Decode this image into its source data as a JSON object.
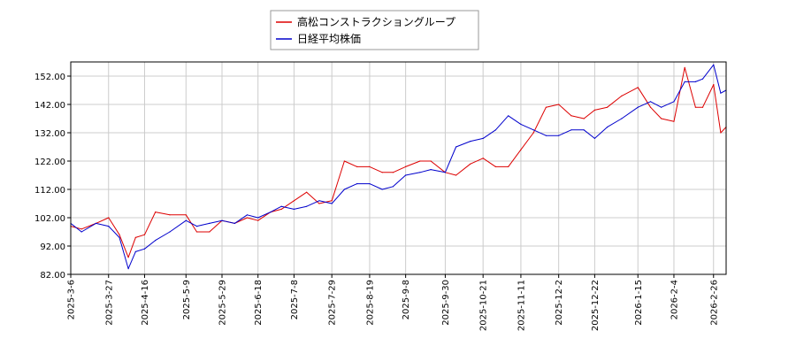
{
  "chart_data": {
    "type": "line",
    "title": "",
    "xlabel": "",
    "ylabel": "",
    "ylim": [
      82,
      157
    ],
    "yticks": [
      "82.00",
      "92.00",
      "102.00",
      "112.00",
      "122.00",
      "132.00",
      "142.00",
      "152.00"
    ],
    "xlim": [
      "2025-03-06",
      "2026-03-05"
    ],
    "xticks": [
      "2025-3-6",
      "2025-3-27",
      "2025-4-16",
      "2025-5-9",
      "2025-5-29",
      "2025-6-18",
      "2025-7-8",
      "2025-7-29",
      "2025-8-19",
      "2025-9-8",
      "2025-9-30",
      "2025-10-21",
      "2025-11-11",
      "2025-12-2",
      "2025-12-22",
      "2026-1-15",
      "2026-2-4",
      "2026-2-26"
    ],
    "grid": true,
    "legend_position": "top-center",
    "series": [
      {
        "name": "高松コンストラクショングループ",
        "color": "#dd0000",
        "x": [
          "2025-03-06",
          "2025-03-12",
          "2025-03-20",
          "2025-03-27",
          "2025-04-02",
          "2025-04-07",
          "2025-04-11",
          "2025-04-16",
          "2025-04-22",
          "2025-04-30",
          "2025-05-09",
          "2025-05-15",
          "2025-05-22",
          "2025-05-29",
          "2025-06-05",
          "2025-06-12",
          "2025-06-18",
          "2025-06-25",
          "2025-07-01",
          "2025-07-08",
          "2025-07-15",
          "2025-07-22",
          "2025-07-29",
          "2025-08-05",
          "2025-08-12",
          "2025-08-19",
          "2025-08-26",
          "2025-09-01",
          "2025-09-08",
          "2025-09-16",
          "2025-09-22",
          "2025-09-30",
          "2025-10-06",
          "2025-10-14",
          "2025-10-21",
          "2025-10-28",
          "2025-11-04",
          "2025-11-11",
          "2025-11-18",
          "2025-11-25",
          "2025-12-02",
          "2025-12-09",
          "2025-12-16",
          "2025-12-22",
          "2025-12-29",
          "2026-01-06",
          "2026-01-15",
          "2026-01-22",
          "2026-01-28",
          "2026-02-04",
          "2026-02-10",
          "2026-02-16",
          "2026-02-20",
          "2026-02-26",
          "2026-03-02",
          "2026-03-05"
        ],
        "values": [
          99,
          98,
          100,
          102,
          96,
          88,
          95,
          96,
          104,
          103,
          103,
          97,
          97,
          101,
          100,
          102,
          101,
          104,
          105,
          108,
          111,
          107,
          108,
          122,
          120,
          120,
          118,
          118,
          120,
          122,
          122,
          118,
          117,
          121,
          123,
          120,
          120,
          126,
          132,
          141,
          142,
          138,
          137,
          140,
          141,
          145,
          148,
          141,
          137,
          136,
          155,
          141,
          141,
          149,
          132,
          134
        ]
      },
      {
        "name": "日経平均株価",
        "color": "#0000cc",
        "x": [
          "2025-03-06",
          "2025-03-12",
          "2025-03-20",
          "2025-03-27",
          "2025-04-02",
          "2025-04-07",
          "2025-04-11",
          "2025-04-16",
          "2025-04-22",
          "2025-04-30",
          "2025-05-09",
          "2025-05-15",
          "2025-05-22",
          "2025-05-29",
          "2025-06-05",
          "2025-06-12",
          "2025-06-18",
          "2025-06-25",
          "2025-07-01",
          "2025-07-08",
          "2025-07-15",
          "2025-07-22",
          "2025-07-29",
          "2025-08-05",
          "2025-08-12",
          "2025-08-19",
          "2025-08-26",
          "2025-09-01",
          "2025-09-08",
          "2025-09-16",
          "2025-09-22",
          "2025-09-30",
          "2025-10-06",
          "2025-10-14",
          "2025-10-21",
          "2025-10-28",
          "2025-11-04",
          "2025-11-11",
          "2025-11-18",
          "2025-11-25",
          "2025-12-02",
          "2025-12-09",
          "2025-12-16",
          "2025-12-22",
          "2025-12-29",
          "2026-01-06",
          "2026-01-15",
          "2026-01-22",
          "2026-01-28",
          "2026-02-04",
          "2026-02-10",
          "2026-02-16",
          "2026-02-20",
          "2026-02-26",
          "2026-03-02",
          "2026-03-05"
        ],
        "values": [
          100,
          97,
          100,
          99,
          95,
          84,
          90,
          91,
          94,
          97,
          101,
          99,
          100,
          101,
          100,
          103,
          102,
          104,
          106,
          105,
          106,
          108,
          107,
          112,
          114,
          114,
          112,
          113,
          117,
          118,
          119,
          118,
          127,
          129,
          130,
          133,
          138,
          135,
          133,
          131,
          131,
          133,
          133,
          130,
          134,
          137,
          141,
          143,
          141,
          143,
          150,
          150,
          151,
          156,
          146,
          147
        ]
      }
    ]
  }
}
